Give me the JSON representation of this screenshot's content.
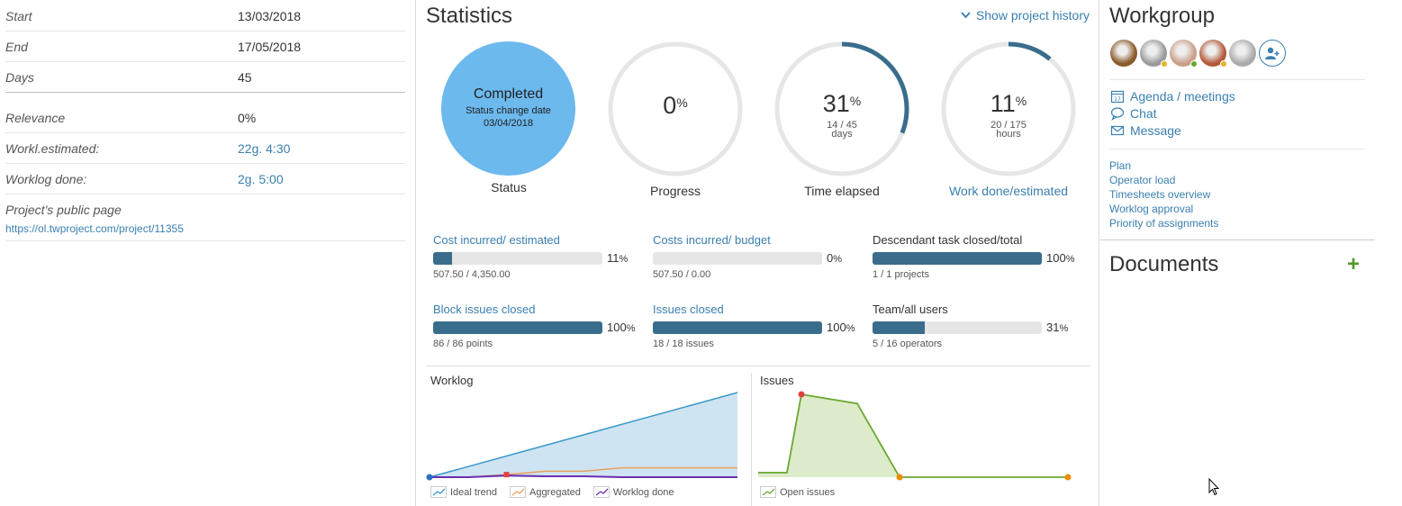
{
  "project_fields": {
    "start": {
      "label": "Start",
      "value": "13/03/2018"
    },
    "end": {
      "label": "End",
      "value": "17/05/2018"
    },
    "days": {
      "label": "Days",
      "value": "45"
    },
    "relevance": {
      "label": "Relevance",
      "value": "0%"
    },
    "workl_estimated": {
      "label": "Workl.estimated:",
      "value": "22g. 4:30"
    },
    "worklog_done": {
      "label": "Worklog done:",
      "value": "2g. 5:00"
    },
    "public_page": {
      "label": "Project's public page",
      "value": "https://ol.twproject.com/project/11355"
    }
  },
  "statistics": {
    "title": "Statistics",
    "history_link": "Show project history",
    "status": {
      "value": "Completed",
      "change_label": "Status change date",
      "change_date": "03/04/2018",
      "label": "Status",
      "color": "#6cb9ee"
    },
    "progress": {
      "value": "0",
      "unit": "%",
      "label": "Progress",
      "fraction": 0
    },
    "time_elapsed": {
      "value": "31",
      "unit": "%",
      "detail": "14 / 45",
      "detail_unit": "days",
      "label": "Time elapsed",
      "fraction": 0.31
    },
    "work_done": {
      "value": "11",
      "unit": "%",
      "detail": "20 / 175",
      "detail_unit": "hours",
      "label": "Work done/estimated",
      "fraction": 0.11
    }
  },
  "metrics": [
    {
      "title": "Cost incurred/ estimated",
      "percent": 11,
      "pct_num": "11",
      "pct_sym": "%",
      "values": "507.50 / 4,350.00",
      "link": true
    },
    {
      "title": "Costs incurred/ budget",
      "percent": 0,
      "pct_num": "0",
      "pct_sym": "%",
      "values": "507.50 / 0.00",
      "link": true
    },
    {
      "title": "Descendant task closed/total",
      "percent": 100,
      "pct_num": "100",
      "pct_sym": "%",
      "values": "1 / 1 projects",
      "link": false
    },
    {
      "title": "Block issues closed",
      "percent": 100,
      "pct_num": "100",
      "pct_sym": "%",
      "values": "86 / 86 points",
      "link": true
    },
    {
      "title": "Issues closed",
      "percent": 100,
      "pct_num": "100",
      "pct_sym": "%",
      "values": "18 / 18 issues",
      "link": true
    },
    {
      "title": "Team/all users",
      "percent": 31,
      "pct_num": "31",
      "pct_sym": "%",
      "values": "5 / 16 operators",
      "link": false
    }
  ],
  "charts": {
    "worklog": {
      "title": "Worklog",
      "legend": [
        "Ideal trend",
        "Aggregated",
        "Worklog done"
      ],
      "colors": {
        "ideal": "#3a99c9",
        "aggregated": "#e8a05a",
        "done": "#6b2fb0"
      }
    },
    "issues": {
      "title": "Issues",
      "legend": [
        "Open issues"
      ],
      "colors": {
        "open": "#6aa832"
      }
    }
  },
  "chart_data": [
    {
      "type": "area",
      "title": "Worklog",
      "series": [
        {
          "name": "Ideal trend",
          "values": [
            0,
            100
          ]
        },
        {
          "name": "Aggregated",
          "values": [
            0,
            0,
            3,
            7,
            7,
            11,
            11,
            11,
            11
          ]
        },
        {
          "name": "Worklog done",
          "values": [
            0,
            0,
            2,
            1,
            1,
            0,
            0,
            0,
            0
          ]
        }
      ],
      "ylim": [
        0,
        100
      ]
    },
    {
      "type": "area",
      "title": "Issues",
      "series": [
        {
          "name": "Open issues",
          "values": [
            1,
            1,
            18,
            16,
            0,
            0,
            0
          ]
        }
      ],
      "ylim": [
        0,
        18
      ]
    }
  ],
  "workgroup": {
    "title": "Workgroup",
    "avatars": [
      {
        "name": "member-1",
        "color": "#8a5a2a",
        "status": ""
      },
      {
        "name": "member-2",
        "color": "#9a9a9a",
        "status": "#e5b32a"
      },
      {
        "name": "member-3",
        "color": "#c9a08a",
        "status": "#6aa832"
      },
      {
        "name": "member-4",
        "color": "#b35a3a",
        "status": "#e5b32a"
      },
      {
        "name": "member-5",
        "color": "#aaaaaa",
        "status": ""
      }
    ],
    "actions": [
      {
        "label": "Agenda / meetings",
        "icon": "calendar-icon"
      },
      {
        "label": "Chat",
        "icon": "chat-icon"
      },
      {
        "label": "Message",
        "icon": "envelope-icon"
      }
    ],
    "links": [
      "Plan",
      "Operator load",
      "Timesheets overview",
      "Worklog approval",
      "Priority of assignments"
    ]
  },
  "documents": {
    "title": "Documents",
    "add": "+"
  }
}
